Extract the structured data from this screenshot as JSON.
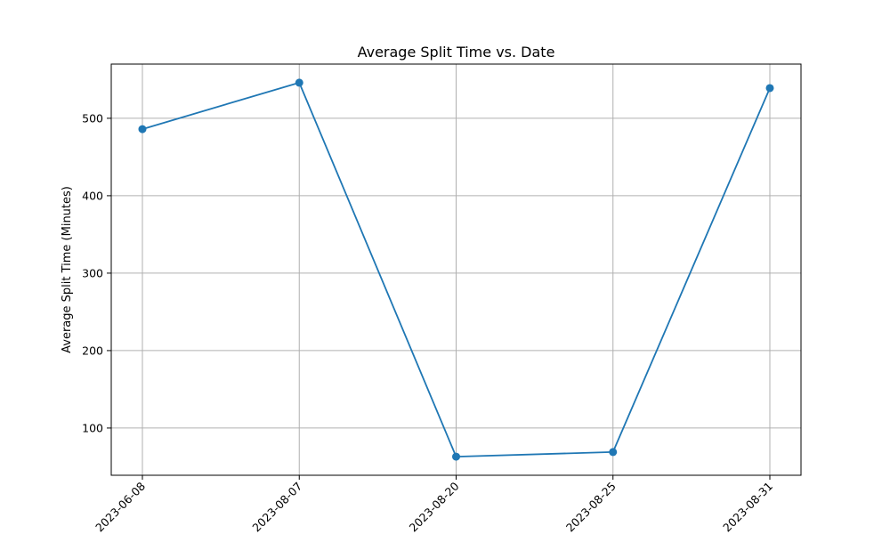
{
  "chart_data": {
    "type": "line",
    "title": "Average Split Time vs. Date",
    "xlabel": "",
    "ylabel": "Average Split Time (Minutes)",
    "categories": [
      "2023-06-08",
      "2023-08-07",
      "2023-08-20",
      "2023-08-25",
      "2023-08-31"
    ],
    "series": [
      {
        "values": [
          486,
          546,
          63,
          69,
          539
        ]
      }
    ],
    "ylim": [
      39,
      570
    ],
    "yticks": [
      100,
      200,
      300,
      400,
      500
    ],
    "grid": true,
    "line_color": "#1f77b4",
    "marker": "circle"
  }
}
